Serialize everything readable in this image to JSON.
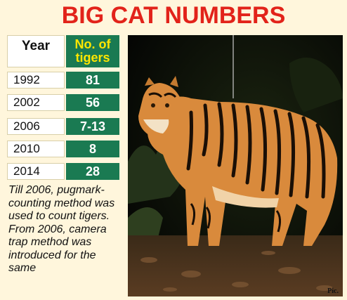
{
  "header": {
    "title": "BIG CAT NUMBERS"
  },
  "table": {
    "col_year": "Year",
    "col_tigers": "No. of tigers",
    "rows": [
      {
        "year": "1992",
        "tigers": "81"
      },
      {
        "year": "2002",
        "tigers": "56"
      },
      {
        "year": "2006",
        "tigers": "7-13"
      },
      {
        "year": "2010",
        "tigers": "8"
      },
      {
        "year": "2014",
        "tigers": "28"
      }
    ]
  },
  "note": "Till 2006, pugmark-counting method was used to count tigers. From 2006, camera trap method was introduced for the same",
  "photo": {
    "credit": "Pic."
  },
  "colors": {
    "title": "#e2231a",
    "table_green": "#1a7a52",
    "header_yellow": "#ffe600",
    "background": "#fff6dc"
  }
}
